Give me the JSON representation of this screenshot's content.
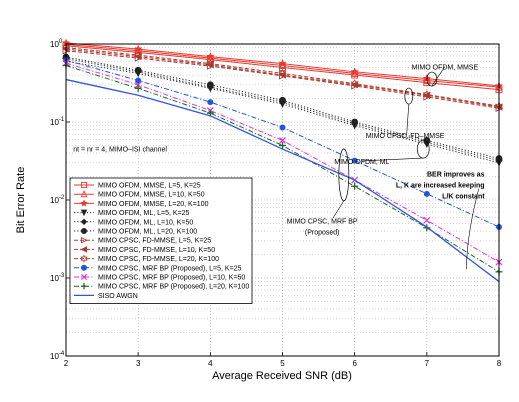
{
  "chart_data": {
    "type": "line",
    "xlabel": "Average Received SNR (dB)",
    "ylabel": "Bit Error Rate",
    "x": [
      2,
      3,
      4,
      5,
      6,
      7,
      8
    ],
    "xlim": [
      2,
      8
    ],
    "ylim_exp": [
      -4,
      0
    ],
    "yscale": "log",
    "grid": "dotted",
    "legend_position": "bottom-left",
    "x_ticks": [
      "2",
      "3",
      "4",
      "5",
      "6",
      "7",
      "8"
    ],
    "y_ticks": [
      {
        "base": "10",
        "exp": "0",
        "value": 1
      },
      {
        "base": "10",
        "exp": "-1",
        "value": 0.1
      },
      {
        "base": "10",
        "exp": "-2",
        "value": 0.01
      },
      {
        "base": "10",
        "exp": "-3",
        "value": 0.001
      },
      {
        "base": "10",
        "exp": "-4",
        "value": 0.0001
      }
    ],
    "series": [
      {
        "name": "MIMO OFDM, MMSE, L=5, K=25",
        "color": "#e8382f",
        "dash": "solid",
        "marker": "square",
        "values": [
          0.95,
          0.78,
          0.63,
          0.5,
          0.4,
          0.32,
          0.26
        ]
      },
      {
        "name": "MIMO OFDM, MMSE, L=10, K=50",
        "color": "#e8382f",
        "dash": "solid",
        "marker": "triangle",
        "values": [
          0.99,
          0.82,
          0.66,
          0.53,
          0.42,
          0.34,
          0.28
        ]
      },
      {
        "name": "MIMO OFDM, MMSE, L=20, K=100",
        "color": "#e8382f",
        "dash": "solid",
        "marker": "star",
        "values": [
          1.03,
          0.86,
          0.69,
          0.56,
          0.44,
          0.36,
          0.29
        ]
      },
      {
        "name": "MIMO OFDM, ML, L=5, K=25",
        "color": "#222222",
        "dash": "dotted",
        "marker": "triangle-down",
        "values": [
          0.6,
          0.42,
          0.27,
          0.17,
          0.09,
          0.052,
          0.03
        ]
      },
      {
        "name": "MIMO OFDM, ML, L=10, K=50",
        "color": "#222222",
        "dash": "dotted",
        "marker": "diamond",
        "values": [
          0.65,
          0.44,
          0.28,
          0.18,
          0.095,
          0.055,
          0.032
        ]
      },
      {
        "name": "MIMO OFDM, ML, L=20, K=100",
        "color": "#222222",
        "dash": "dotted",
        "marker": "circle",
        "values": [
          0.68,
          0.46,
          0.3,
          0.19,
          0.1,
          0.058,
          0.034
        ]
      },
      {
        "name": "MIMO CPSC, FD-MMSE, L=5, K=25",
        "color": "#b03a2e",
        "dash": "dashed",
        "marker": "triangle-right",
        "values": [
          0.82,
          0.66,
          0.52,
          0.39,
          0.29,
          0.21,
          0.15
        ]
      },
      {
        "name": "MIMO CPSC, FD-MMSE, L=10, K=50",
        "color": "#b03a2e",
        "dash": "dashed",
        "marker": "triangle-left",
        "values": [
          0.86,
          0.69,
          0.54,
          0.4,
          0.3,
          0.22,
          0.155
        ]
      },
      {
        "name": "MIMO CPSC, FD-MMSE, L=20, K=100",
        "color": "#b03a2e",
        "dash": "dashed",
        "marker": "hexagram",
        "values": [
          0.9,
          0.72,
          0.56,
          0.42,
          0.31,
          0.225,
          0.16
        ]
      },
      {
        "name": "MIMO CPSC, MRF BP (Proposed), L=5, K=25",
        "color": "#2255dd",
        "dash": "dashdot",
        "marker": "dot",
        "values": [
          0.62,
          0.34,
          0.18,
          0.085,
          0.032,
          0.012,
          0.0045
        ]
      },
      {
        "name": "MIMO CPSC, MRF BP (Proposed), L=10, K=50",
        "color": "#dd33dd",
        "dash": "dashdot",
        "marker": "x",
        "values": [
          0.57,
          0.3,
          0.14,
          0.058,
          0.018,
          0.0055,
          0.0016
        ]
      },
      {
        "name": "MIMO CPSC, MRF BP (Proposed), L=20, K=100",
        "color": "#226622",
        "dash": "dashdot",
        "marker": "plus",
        "values": [
          0.53,
          0.27,
          0.13,
          0.05,
          0.015,
          0.0044,
          0.0012
        ]
      },
      {
        "name": "SISO AWGN",
        "color": "#3355dd",
        "dash": "solid",
        "marker": "none",
        "values": [
          0.35,
          0.22,
          0.12,
          0.045,
          0.018,
          0.0045,
          0.0009
        ]
      }
    ],
    "annotations": [
      {
        "text": "MIMO OFDM, MMSE",
        "x": 7.25,
        "y": 0.47,
        "bold": false
      },
      {
        "text": "MIMO CPSC, FD–MMSE",
        "x": 6.7,
        "y": 0.062,
        "bold": false
      },
      {
        "text": "MIMO OFDM, ML",
        "x": 6.1,
        "y": 0.029,
        "bold": false
      },
      {
        "text": "nt = nr = 4, MIMO–ISI channel",
        "x": 2.1,
        "y": 0.042,
        "bold": false
      },
      {
        "text": "BER improves as",
        "x": 7.8,
        "y": 0.02,
        "bold": true
      },
      {
        "text": "L, K are increased keeping",
        "x": 7.8,
        "y": 0.0145,
        "bold": true
      },
      {
        "text": "L/K constant",
        "x": 7.8,
        "y": 0.0105,
        "bold": true
      },
      {
        "text": "MIMO CPSC, MRF BP",
        "x": 5.55,
        "y": 0.005,
        "bold": false
      },
      {
        "text": "(Proposed)",
        "x": 5.55,
        "y": 0.0036,
        "bold": false
      }
    ]
  }
}
